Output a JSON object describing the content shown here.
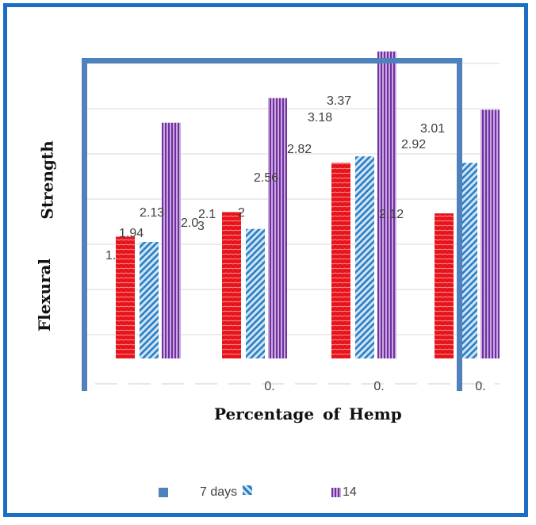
{
  "chart_data": {
    "type": "bar",
    "title": "",
    "ylabel_words": [
      "Flexural",
      "Strength"
    ],
    "xlabel": "Percentage of Hemp",
    "categories": [
      "",
      "0.",
      "0.",
      "0."
    ],
    "series": [
      {
        "name": "7 days",
        "color": "#e8141b",
        "pattern": "solid-red",
        "values": [
          1.94,
          2.13,
          2.51,
          2.12
        ]
      },
      {
        "name": "",
        "color": "#3d8fd1",
        "pattern": "blue-diagonal",
        "values": [
          1.9,
          2.0,
          2.56,
          2.51
        ]
      },
      {
        "name": "14",
        "color": "#7030a0",
        "pattern": "purple-vertical",
        "values": [
          2.82,
          3.01,
          3.37,
          2.92
        ]
      }
    ],
    "data_labels": [
      {
        "text": "1.",
        "series": 0,
        "category": 0
      },
      {
        "text": "1.94",
        "series": 1,
        "category": 0
      },
      {
        "text": "2.13",
        "series": 1,
        "category": 0
      },
      {
        "text": "2.0",
        "series": 1,
        "category": 0
      },
      {
        "text": "3",
        "series": 2,
        "category": 0
      },
      {
        "text": "2.1",
        "series": 0,
        "category": 1
      },
      {
        "text": "2",
        "series": 0,
        "category": 1
      },
      {
        "text": "2.56",
        "series": 1,
        "category": 1
      },
      {
        "text": "2.82",
        "series": 2,
        "category": 1
      },
      {
        "text": "3.18",
        "series": 2,
        "category": 1
      },
      {
        "text": "3.37",
        "series": 2,
        "category": 2
      },
      {
        "text": "2.12",
        "series": 2,
        "category": 2
      },
      {
        "text": "2.92",
        "series": 2,
        "category": 2
      },
      {
        "text": "3.01",
        "series": 2,
        "category": 3
      }
    ],
    "ylim": [
      1.0,
      3.4
    ],
    "grid": true,
    "legend_position": "bottom"
  },
  "legend": {
    "item1_label": "7 days",
    "item2_label": "",
    "item3_label": "14"
  },
  "colors": {
    "frame": "#1a6fc4",
    "plot_box": "#4f81bd",
    "grid": "#d9d9d9"
  }
}
